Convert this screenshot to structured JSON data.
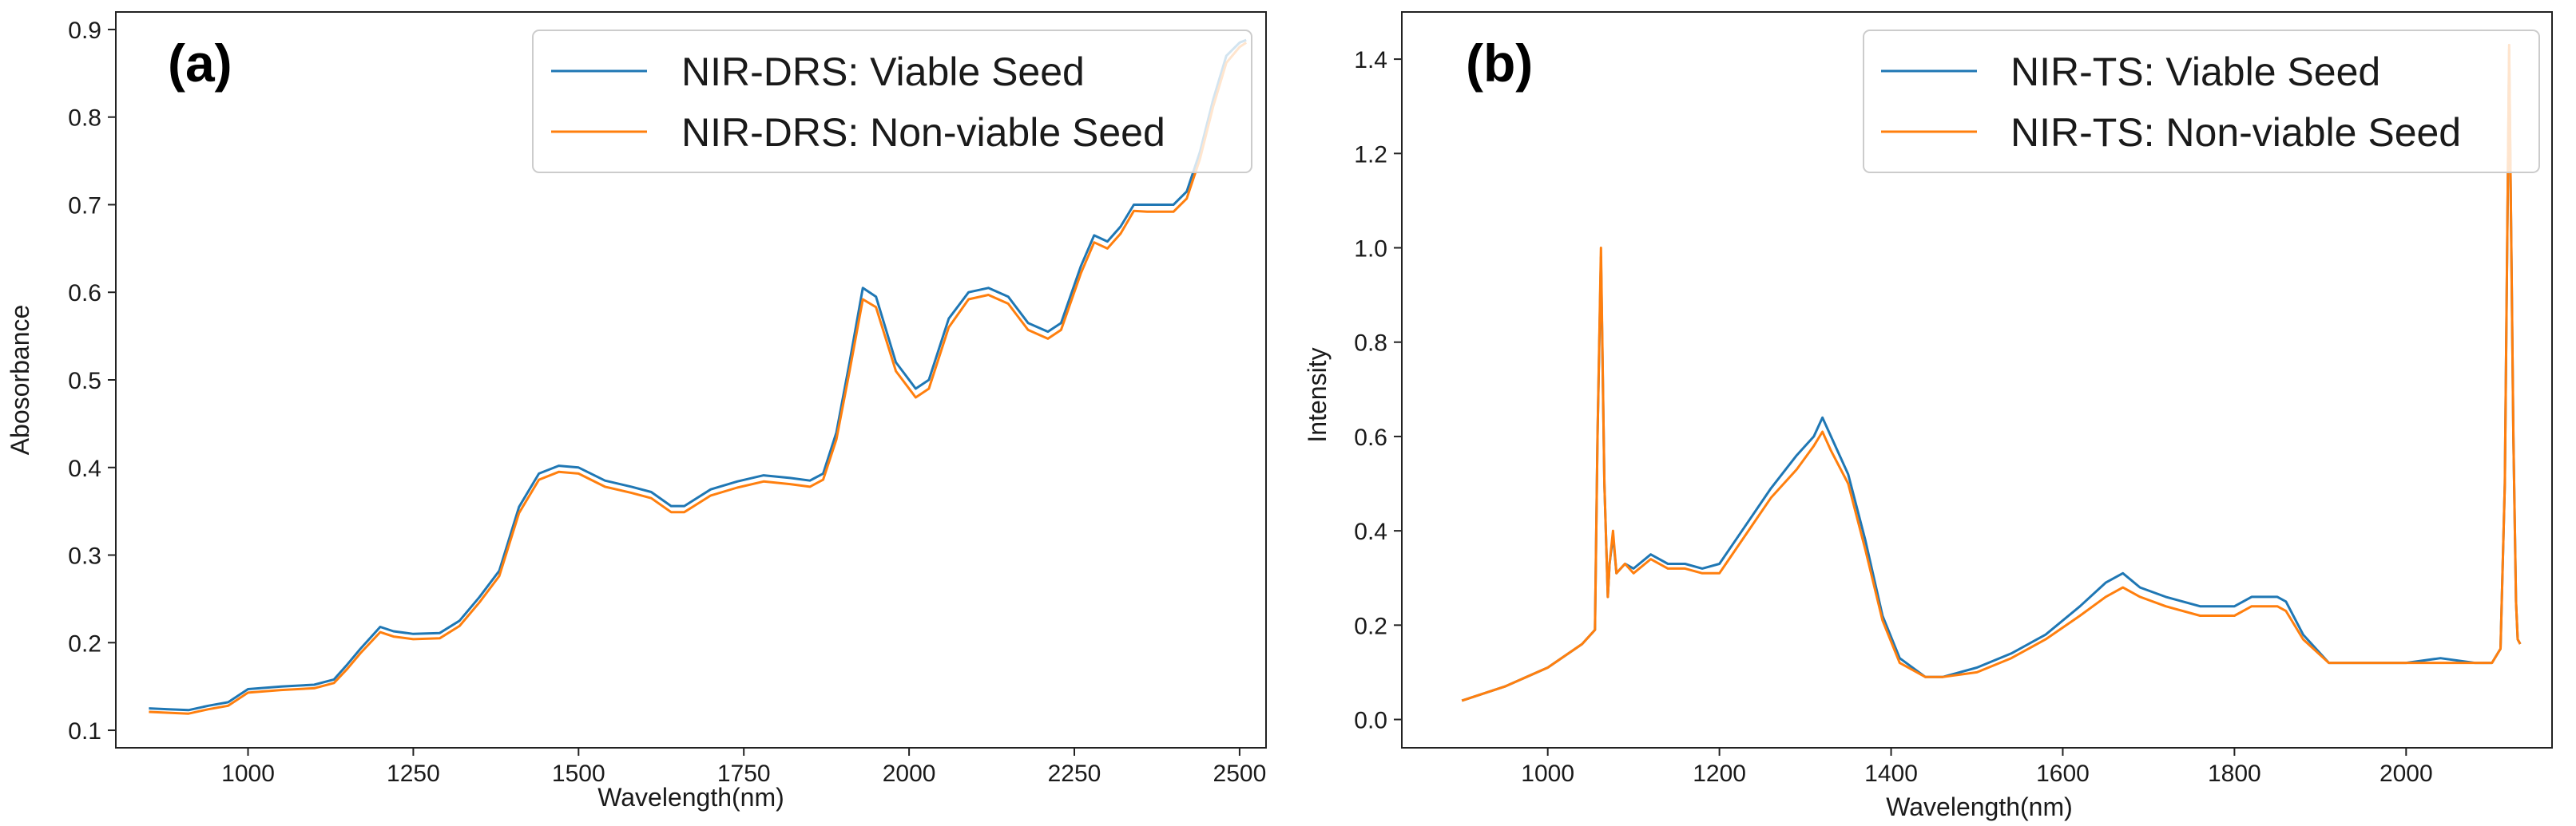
{
  "colors": {
    "viable": "#1f77b4",
    "nonviable": "#ff7f0e"
  },
  "chart_data": [
    {
      "type": "line",
      "panel_label": "(a)",
      "xlabel": "Wavelength(nm)",
      "ylabel": "Abosorbance",
      "xlim": [
        800,
        2540
      ],
      "ylim": [
        0.08,
        0.92
      ],
      "xticks": [
        1000,
        1250,
        1500,
        1750,
        2000,
        2250,
        2500
      ],
      "yticks": [
        0.1,
        0.2,
        0.3,
        0.4,
        0.5,
        0.6,
        0.7,
        0.8,
        0.9
      ],
      "legend_position": "top-right",
      "grid": false,
      "series": [
        {
          "name": "NIR-DRS: Viable Seed",
          "color": "#1f77b4",
          "x": [
            850,
            880,
            910,
            940,
            970,
            1000,
            1050,
            1100,
            1130,
            1150,
            1170,
            1200,
            1220,
            1250,
            1290,
            1320,
            1350,
            1380,
            1410,
            1440,
            1470,
            1500,
            1540,
            1580,
            1610,
            1640,
            1660,
            1700,
            1740,
            1780,
            1820,
            1850,
            1870,
            1890,
            1910,
            1930,
            1950,
            1980,
            2010,
            2030,
            2060,
            2090,
            2120,
            2150,
            2180,
            2210,
            2230,
            2260,
            2280,
            2300,
            2320,
            2340,
            2360,
            2400,
            2420,
            2440,
            2460,
            2480,
            2500,
            2510
          ],
          "y": [
            0.125,
            0.124,
            0.123,
            0.128,
            0.132,
            0.147,
            0.15,
            0.152,
            0.158,
            0.175,
            0.193,
            0.218,
            0.213,
            0.21,
            0.211,
            0.225,
            0.252,
            0.282,
            0.355,
            0.393,
            0.402,
            0.4,
            0.385,
            0.378,
            0.372,
            0.356,
            0.356,
            0.375,
            0.384,
            0.391,
            0.388,
            0.385,
            0.393,
            0.44,
            0.52,
            0.605,
            0.595,
            0.52,
            0.49,
            0.5,
            0.57,
            0.6,
            0.605,
            0.595,
            0.565,
            0.555,
            0.565,
            0.63,
            0.665,
            0.658,
            0.675,
            0.7,
            0.7,
            0.7,
            0.715,
            0.76,
            0.82,
            0.87,
            0.885,
            0.888
          ]
        },
        {
          "name": "NIR-DRS: Non-viable Seed",
          "color": "#ff7f0e",
          "x": [
            850,
            880,
            910,
            940,
            970,
            1000,
            1050,
            1100,
            1130,
            1150,
            1170,
            1200,
            1220,
            1250,
            1290,
            1320,
            1350,
            1380,
            1410,
            1440,
            1470,
            1500,
            1540,
            1580,
            1610,
            1640,
            1660,
            1700,
            1740,
            1780,
            1820,
            1850,
            1870,
            1890,
            1910,
            1930,
            1950,
            1980,
            2010,
            2030,
            2060,
            2090,
            2120,
            2150,
            2180,
            2210,
            2230,
            2260,
            2280,
            2300,
            2320,
            2340,
            2360,
            2400,
            2420,
            2440,
            2460,
            2480,
            2500,
            2510
          ],
          "y": [
            0.121,
            0.12,
            0.119,
            0.124,
            0.128,
            0.143,
            0.146,
            0.148,
            0.154,
            0.17,
            0.188,
            0.212,
            0.207,
            0.204,
            0.205,
            0.219,
            0.246,
            0.276,
            0.348,
            0.386,
            0.395,
            0.393,
            0.378,
            0.371,
            0.365,
            0.349,
            0.349,
            0.368,
            0.377,
            0.384,
            0.381,
            0.378,
            0.386,
            0.432,
            0.51,
            0.592,
            0.583,
            0.51,
            0.48,
            0.49,
            0.56,
            0.592,
            0.597,
            0.587,
            0.557,
            0.547,
            0.557,
            0.622,
            0.657,
            0.65,
            0.667,
            0.693,
            0.692,
            0.692,
            0.707,
            0.752,
            0.812,
            0.862,
            0.88,
            0.885
          ]
        }
      ]
    },
    {
      "type": "line",
      "panel_label": "(b)",
      "xlabel": "Wavelength(nm)",
      "ylabel": "Intensity",
      "xlim": [
        830,
        2170
      ],
      "ylim": [
        -0.06,
        1.5
      ],
      "xticks": [
        1000,
        1200,
        1400,
        1600,
        1800,
        2000
      ],
      "yticks": [
        0.0,
        0.2,
        0.4,
        0.6,
        0.8,
        1.0,
        1.2,
        1.4
      ],
      "legend_position": "top-right",
      "grid": false,
      "series": [
        {
          "name": "NIR-TS: Viable Seed",
          "color": "#1f77b4",
          "x": [
            900,
            950,
            1000,
            1040,
            1055,
            1058,
            1062,
            1066,
            1070,
            1072,
            1076,
            1080,
            1085,
            1090,
            1100,
            1120,
            1140,
            1160,
            1180,
            1200,
            1230,
            1260,
            1290,
            1310,
            1320,
            1330,
            1350,
            1370,
            1390,
            1410,
            1440,
            1460,
            1500,
            1540,
            1580,
            1620,
            1650,
            1670,
            1690,
            1720,
            1760,
            1800,
            1820,
            1850,
            1860,
            1880,
            1910,
            1940,
            2000,
            2040,
            2080,
            2100,
            2110,
            2115,
            2120,
            2125,
            2128,
            2130,
            2133
          ],
          "y": [
            0.04,
            0.07,
            0.11,
            0.16,
            0.19,
            0.6,
            0.98,
            0.5,
            0.26,
            0.33,
            0.39,
            0.31,
            0.32,
            0.33,
            0.32,
            0.35,
            0.33,
            0.33,
            0.32,
            0.33,
            0.41,
            0.49,
            0.56,
            0.6,
            0.64,
            0.6,
            0.52,
            0.38,
            0.22,
            0.13,
            0.09,
            0.09,
            0.11,
            0.14,
            0.18,
            0.24,
            0.29,
            0.31,
            0.28,
            0.26,
            0.24,
            0.24,
            0.26,
            0.26,
            0.25,
            0.18,
            0.12,
            0.12,
            0.12,
            0.13,
            0.12,
            0.12,
            0.15,
            0.5,
            1.42,
            0.6,
            0.25,
            0.17,
            0.16
          ]
        },
        {
          "name": "NIR-TS: Non-viable Seed",
          "color": "#ff7f0e",
          "x": [
            900,
            950,
            1000,
            1040,
            1055,
            1058,
            1062,
            1066,
            1070,
            1072,
            1076,
            1080,
            1085,
            1090,
            1100,
            1120,
            1140,
            1160,
            1180,
            1200,
            1230,
            1260,
            1290,
            1310,
            1320,
            1330,
            1350,
            1370,
            1390,
            1410,
            1440,
            1460,
            1500,
            1540,
            1580,
            1620,
            1650,
            1670,
            1690,
            1720,
            1760,
            1800,
            1820,
            1850,
            1860,
            1880,
            1910,
            1940,
            2000,
            2040,
            2080,
            2100,
            2110,
            2115,
            2120,
            2125,
            2128,
            2130,
            2133
          ],
          "y": [
            0.04,
            0.07,
            0.11,
            0.16,
            0.19,
            0.6,
            1.0,
            0.5,
            0.26,
            0.33,
            0.4,
            0.31,
            0.32,
            0.33,
            0.31,
            0.34,
            0.32,
            0.32,
            0.31,
            0.31,
            0.39,
            0.47,
            0.53,
            0.58,
            0.61,
            0.57,
            0.5,
            0.36,
            0.21,
            0.12,
            0.09,
            0.09,
            0.1,
            0.13,
            0.17,
            0.22,
            0.26,
            0.28,
            0.26,
            0.24,
            0.22,
            0.22,
            0.24,
            0.24,
            0.23,
            0.17,
            0.12,
            0.12,
            0.12,
            0.12,
            0.12,
            0.12,
            0.15,
            0.5,
            1.43,
            0.6,
            0.25,
            0.17,
            0.16
          ]
        }
      ]
    }
  ]
}
